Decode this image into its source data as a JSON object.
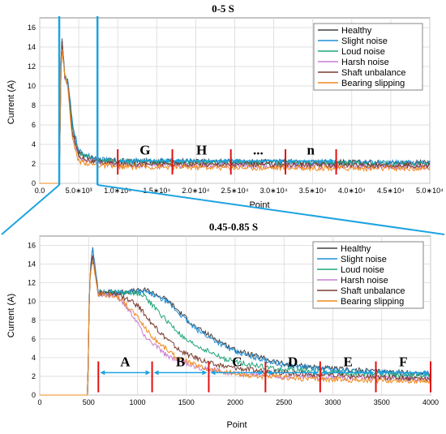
{
  "chart_data": [
    {
      "type": "line",
      "title": "0-5 S",
      "xlabel": "Point",
      "ylabel": "Current (A)",
      "xlim": [
        0,
        50000
      ],
      "ylim": [
        0,
        17
      ],
      "x_ticks": [
        0,
        5000,
        10000,
        15000,
        20000,
        25000,
        30000,
        35000,
        40000,
        45000,
        50000
      ],
      "x_tick_labels": [
        "0.0",
        "5.0∗10³",
        "1.0∗10⁴",
        "1.5∗10⁴",
        "2.0∗10⁴",
        "2.5∗10⁴",
        "3.0∗10⁴",
        "3.5∗10⁴",
        "4.0∗10⁴",
        "4.5∗10⁴",
        "5.0∗10⁴"
      ],
      "y_ticks": [
        0,
        2,
        4,
        6,
        8,
        10,
        12,
        14,
        16
      ],
      "grid": true,
      "legend_position": "top-right",
      "series": [
        {
          "name": "Healthy",
          "color": "#404040",
          "x": [
            0,
            2500,
            2800,
            3200,
            3600,
            4200,
            5000,
            7000,
            10000,
            50000
          ],
          "y": [
            0,
            0,
            15.8,
            11.0,
            10.5,
            6.0,
            3.2,
            2.5,
            2.3,
            2.1
          ]
        },
        {
          "name": "Slight noise",
          "color": "#1f8fd6",
          "x": [
            0,
            2500,
            2800,
            3200,
            3600,
            4200,
            5000,
            7000,
            10000,
            50000
          ],
          "y": [
            0,
            0,
            15.5,
            11.0,
            10.5,
            6.2,
            3.3,
            2.5,
            2.3,
            2.1
          ]
        },
        {
          "name": "Loud noise",
          "color": "#21a67a",
          "x": [
            0,
            2500,
            2800,
            3200,
            3600,
            4200,
            5000,
            7000,
            10000,
            50000
          ],
          "y": [
            0,
            0,
            15.0,
            11.0,
            10.3,
            5.6,
            3.0,
            2.4,
            2.2,
            2.0
          ]
        },
        {
          "name": "Harsh noise",
          "color": "#c77dd6",
          "x": [
            0,
            2500,
            2800,
            3200,
            3600,
            4200,
            5000,
            7000,
            10000,
            50000
          ],
          "y": [
            0,
            0,
            14.8,
            11.0,
            10.0,
            4.8,
            2.6,
            2.1,
            1.9,
            1.7
          ]
        },
        {
          "name": "Shaft unbalance",
          "color": "#7a3b2e",
          "x": [
            0,
            2500,
            2800,
            3200,
            3600,
            4200,
            5000,
            7000,
            10000,
            50000
          ],
          "y": [
            0,
            0,
            15.0,
            11.0,
            10.2,
            5.2,
            2.8,
            2.2,
            2.0,
            1.8
          ]
        },
        {
          "name": "Bearing slipping",
          "color": "#f08a1e",
          "x": [
            0,
            2500,
            2800,
            3200,
            3600,
            4200,
            5000,
            7000,
            10000,
            50000
          ],
          "y": [
            0,
            0,
            14.5,
            11.0,
            10.0,
            4.4,
            2.3,
            1.9,
            1.7,
            1.5
          ]
        }
      ],
      "segment_boundaries": [
        10000,
        17000,
        24500,
        31500,
        38000
      ],
      "segment_labels": [
        {
          "text": "G",
          "from": 10000,
          "to": 17000
        },
        {
          "text": "H",
          "from": 17000,
          "to": 24500
        },
        {
          "text": "...",
          "from": 24500,
          "to": 31500
        },
        {
          "text": "n",
          "from": 31500,
          "to": 38000
        }
      ],
      "zoom_window": [
        2500,
        7400
      ]
    },
    {
      "type": "line",
      "title": "0.45-0.85 S",
      "xlabel": "Point",
      "ylabel": "Current (A)",
      "xlim": [
        0,
        4000
      ],
      "ylim": [
        0,
        17
      ],
      "x_ticks": [
        0,
        500,
        1000,
        1500,
        2000,
        2500,
        3000,
        3500,
        4000
      ],
      "x_tick_labels": [
        "0",
        "500",
        "1000",
        "1500",
        "2000",
        "2500",
        "3000",
        "3500",
        "4000"
      ],
      "y_ticks": [
        0,
        2,
        4,
        6,
        8,
        10,
        12,
        14,
        16
      ],
      "grid": true,
      "legend_position": "top-right",
      "series": [
        {
          "name": "Healthy",
          "color": "#404040",
          "x": [
            0,
            490,
            510,
            540,
            600,
            800,
            1100,
            1300,
            1600,
            2000,
            2500,
            3000,
            3500,
            4000
          ],
          "y": [
            0,
            0,
            12,
            16.0,
            11.0,
            11.0,
            11.2,
            10.2,
            7.2,
            4.8,
            3.3,
            2.8,
            2.5,
            2.3
          ]
        },
        {
          "name": "Slight noise",
          "color": "#1f8fd6",
          "x": [
            0,
            490,
            510,
            540,
            600,
            800,
            1100,
            1300,
            1600,
            2000,
            2500,
            3000,
            3500,
            4000
          ],
          "y": [
            0,
            0,
            12,
            15.8,
            11.0,
            11.0,
            11.0,
            10.0,
            7.0,
            4.6,
            3.2,
            2.7,
            2.4,
            2.2
          ]
        },
        {
          "name": "Loud noise",
          "color": "#21a67a",
          "x": [
            0,
            490,
            510,
            540,
            600,
            800,
            1050,
            1250,
            1500,
            1900,
            2400,
            3000,
            3500,
            4000
          ],
          "y": [
            0,
            0,
            12,
            15.2,
            11.0,
            11.0,
            10.8,
            8.5,
            5.8,
            3.8,
            2.8,
            2.4,
            2.2,
            2.0
          ]
        },
        {
          "name": "Harsh noise",
          "color": "#c77dd6",
          "x": [
            0,
            490,
            510,
            540,
            600,
            800,
            950,
            1100,
            1300,
            1600,
            2000,
            2500,
            3000,
            4000
          ],
          "y": [
            0,
            0,
            12,
            15.0,
            10.8,
            10.5,
            8.5,
            6.0,
            4.2,
            3.0,
            2.3,
            2.0,
            1.9,
            1.7
          ]
        },
        {
          "name": "Shaft unbalance",
          "color": "#7a3b2e",
          "x": [
            0,
            490,
            510,
            540,
            600,
            800,
            1000,
            1200,
            1450,
            1800,
            2300,
            3000,
            3500,
            4000
          ],
          "y": [
            0,
            0,
            12,
            15.0,
            10.8,
            10.8,
            9.6,
            7.0,
            4.6,
            3.2,
            2.5,
            2.1,
            1.9,
            1.8
          ]
        },
        {
          "name": "Bearing slipping",
          "color": "#f08a1e",
          "x": [
            0,
            490,
            510,
            540,
            600,
            800,
            950,
            1150,
            1400,
            1700,
            2100,
            2600,
            3200,
            4000
          ],
          "y": [
            0,
            0,
            12,
            14.6,
            10.8,
            10.5,
            9.0,
            6.2,
            4.0,
            2.8,
            2.1,
            1.8,
            1.6,
            1.5
          ]
        }
      ],
      "segment_boundaries": [
        600,
        1150,
        1730,
        2310,
        2870,
        3440,
        4000
      ],
      "segment_labels": [
        {
          "text": "A",
          "from": 600,
          "to": 1150
        },
        {
          "text": "B",
          "from": 1150,
          "to": 1730
        },
        {
          "text": "C",
          "from": 1730,
          "to": 2310
        },
        {
          "text": "D",
          "from": 2310,
          "to": 2870
        },
        {
          "text": "E",
          "from": 2870,
          "to": 3440
        },
        {
          "text": "F",
          "from": 3440,
          "to": 4000
        }
      ]
    }
  ],
  "colors": {
    "zoom_lines": "#1ea3e0",
    "segment_lines": "#e01010",
    "arrows": "#1ea3e0",
    "grid": "#d9d9d9"
  }
}
